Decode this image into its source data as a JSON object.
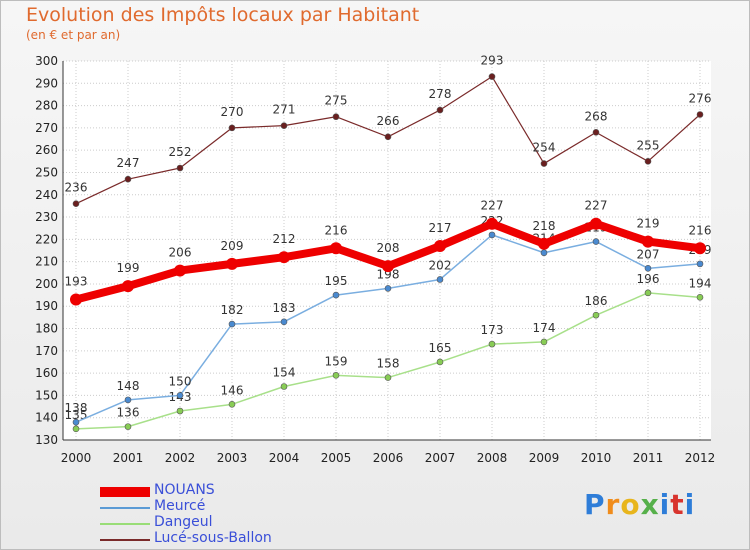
{
  "header": {
    "title": "Evolution des Impôts locaux par Habitant",
    "subtitle": "(en € et par an)"
  },
  "logo": {
    "text": "Proxiti"
  },
  "colors": {
    "NOUANS": "#ee0000",
    "Meurcé": "#5b9bd5",
    "Dangeul": "#99dd77",
    "Lucé-sous-Ballon": "#7a2a2a"
  },
  "chart_data": {
    "type": "line",
    "title": "Evolution des Impôts locaux par Habitant",
    "subtitle": "(en € et par an)",
    "xlabel": "",
    "ylabel": "",
    "ylim": [
      130,
      300
    ],
    "yticks": [
      130,
      140,
      150,
      160,
      170,
      180,
      190,
      200,
      210,
      220,
      230,
      240,
      250,
      260,
      270,
      280,
      290,
      300
    ],
    "grid": true,
    "legend": "bottom-left",
    "x": [
      "2000",
      "2001",
      "2002",
      "2003",
      "2004",
      "2005",
      "2006",
      "2007",
      "2008",
      "2009",
      "2010",
      "2011",
      "2012"
    ],
    "series": [
      {
        "name": "NOUANS",
        "values": [
          193,
          199,
          206,
          209,
          212,
          216,
          208,
          217,
          227,
          218,
          227,
          219,
          216
        ]
      },
      {
        "name": "Meurcé",
        "values": [
          138,
          148,
          150,
          182,
          183,
          195,
          198,
          202,
          222,
          214,
          219,
          207,
          209
        ]
      },
      {
        "name": "Dangeul",
        "values": [
          135,
          136,
          143,
          146,
          154,
          159,
          158,
          165,
          173,
          174,
          186,
          196,
          194
        ]
      },
      {
        "name": "Lucé-sous-Ballon",
        "values": [
          236,
          247,
          252,
          270,
          271,
          275,
          266,
          278,
          293,
          254,
          268,
          255,
          276
        ]
      }
    ]
  }
}
